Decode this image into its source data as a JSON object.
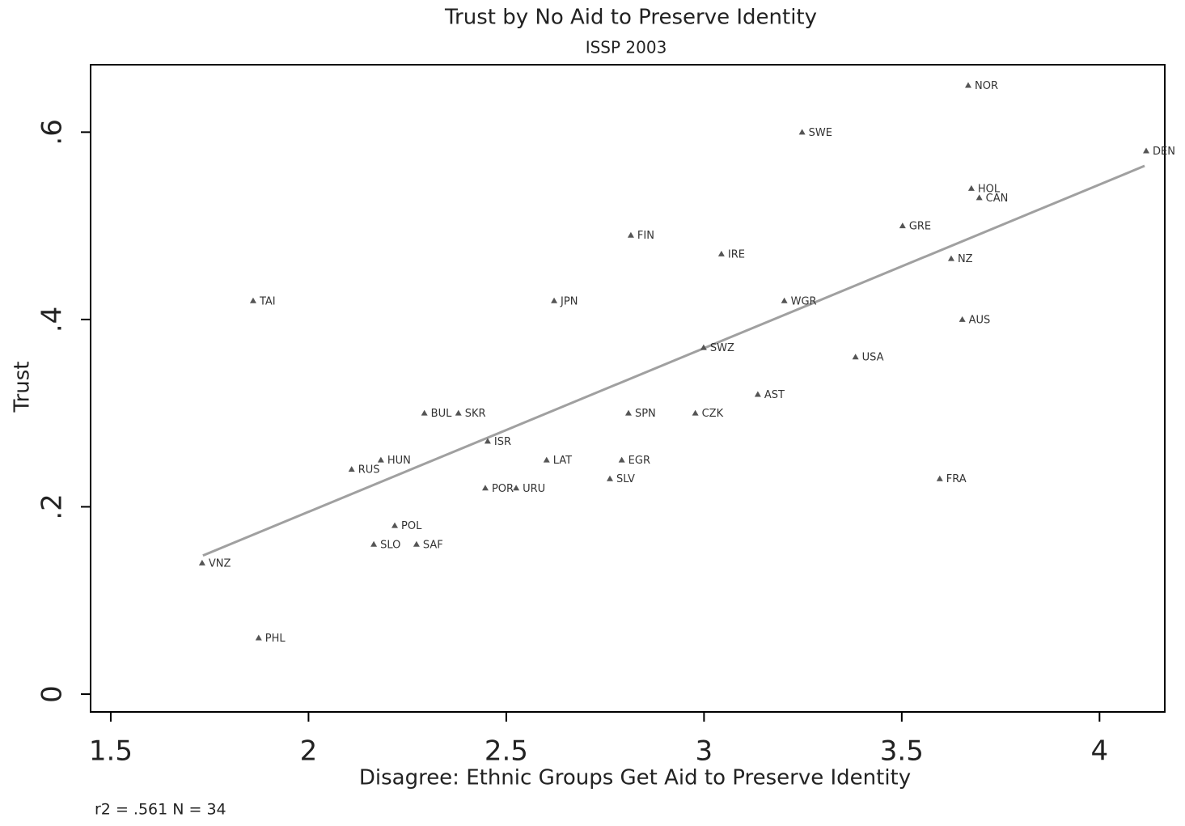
{
  "chart_data": {
    "type": "scatter",
    "title": "Trust by No Aid to Preserve Identity",
    "subtitle": "ISSP 2003",
    "x_label": "Disagree: Ethnic Groups Get Aid to Preserve Identity",
    "y_label": "Trust",
    "note": "r2 = .561  N = 34",
    "color": "#555555",
    "fit_color": "#a0a0a0",
    "labels": [
      "NOR",
      "SWE",
      "DEN",
      "HOL",
      "CAN",
      "GRE",
      "FIN",
      "IRE",
      "NZ",
      "TAI",
      "JPN",
      "WGR",
      "AUS",
      "SWZ",
      "USA",
      "AST",
      "BUL",
      "SKR",
      "SPN",
      "CZK",
      "ISR",
      "HUN",
      "LAT",
      "EGR",
      "RUS",
      "FRA",
      "SLV",
      "POR",
      "URU",
      "POL",
      "SLO",
      "SAF",
      "VNZ",
      "PHL"
    ],
    "x": [
      3.668,
      3.248,
      4.118,
      3.676,
      3.696,
      3.502,
      2.815,
      3.044,
      3.625,
      1.86,
      2.621,
      3.203,
      3.653,
      2.999,
      3.383,
      3.136,
      2.293,
      2.379,
      2.809,
      2.978,
      2.453,
      2.183,
      2.602,
      2.792,
      2.109,
      3.596,
      2.762,
      2.447,
      2.525,
      2.218,
      2.165,
      2.273,
      1.731,
      1.874
    ],
    "values": [
      0.65,
      0.6,
      0.58,
      0.54,
      0.53,
      0.5,
      0.49,
      0.47,
      0.465,
      0.42,
      0.42,
      0.42,
      0.4,
      0.37,
      0.36,
      0.32,
      0.3,
      0.3,
      0.3,
      0.3,
      0.27,
      0.25,
      0.25,
      0.25,
      0.24,
      0.23,
      0.23,
      0.22,
      0.22,
      0.18,
      0.16,
      0.16,
      0.14,
      0.06
    ],
    "fit": {
      "x": [
        1.733,
        4.114
      ],
      "y": [
        0.148,
        0.564
      ]
    },
    "xlim": [
      1.449,
      4.165
    ],
    "ylim": [
      -0.019,
      0.672
    ],
    "xticks": [
      1.5,
      2,
      2.5,
      3,
      3.5,
      4
    ],
    "yticks": [
      0,
      {
        "value": 0.2,
        "label": ".2"
      },
      {
        "value": 0.4,
        "label": ".4"
      },
      {
        "value": 0.6,
        "label": ".6"
      }
    ]
  }
}
